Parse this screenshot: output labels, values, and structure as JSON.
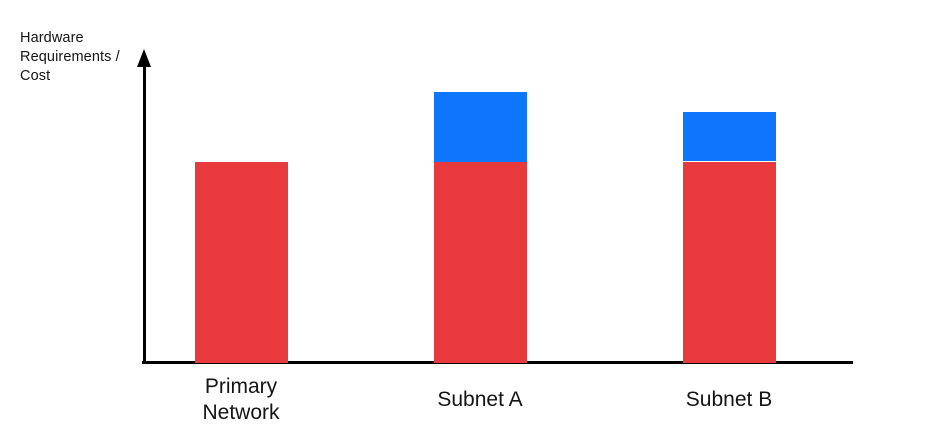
{
  "chart_data": {
    "type": "bar",
    "stacked": true,
    "title": "",
    "xlabel": "",
    "ylabel": "Hardware\nRequirements /\nCost",
    "categories": [
      "Primary Network",
      "Subnet A",
      "Subnet B"
    ],
    "series": [
      {
        "name": "red-base",
        "color": "#E8393C",
        "values": [
          65,
          65,
          65
        ]
      },
      {
        "name": "blue-overhead",
        "color": "#0E76FD",
        "values": [
          0,
          22.5,
          16
        ]
      }
    ],
    "ylim": [
      0,
      100
    ],
    "value_ticks_shown": false,
    "grid": false,
    "legend_visible": false,
    "axis_color": "#000000",
    "label_color": "#141414",
    "background": "#FFFFFF"
  }
}
